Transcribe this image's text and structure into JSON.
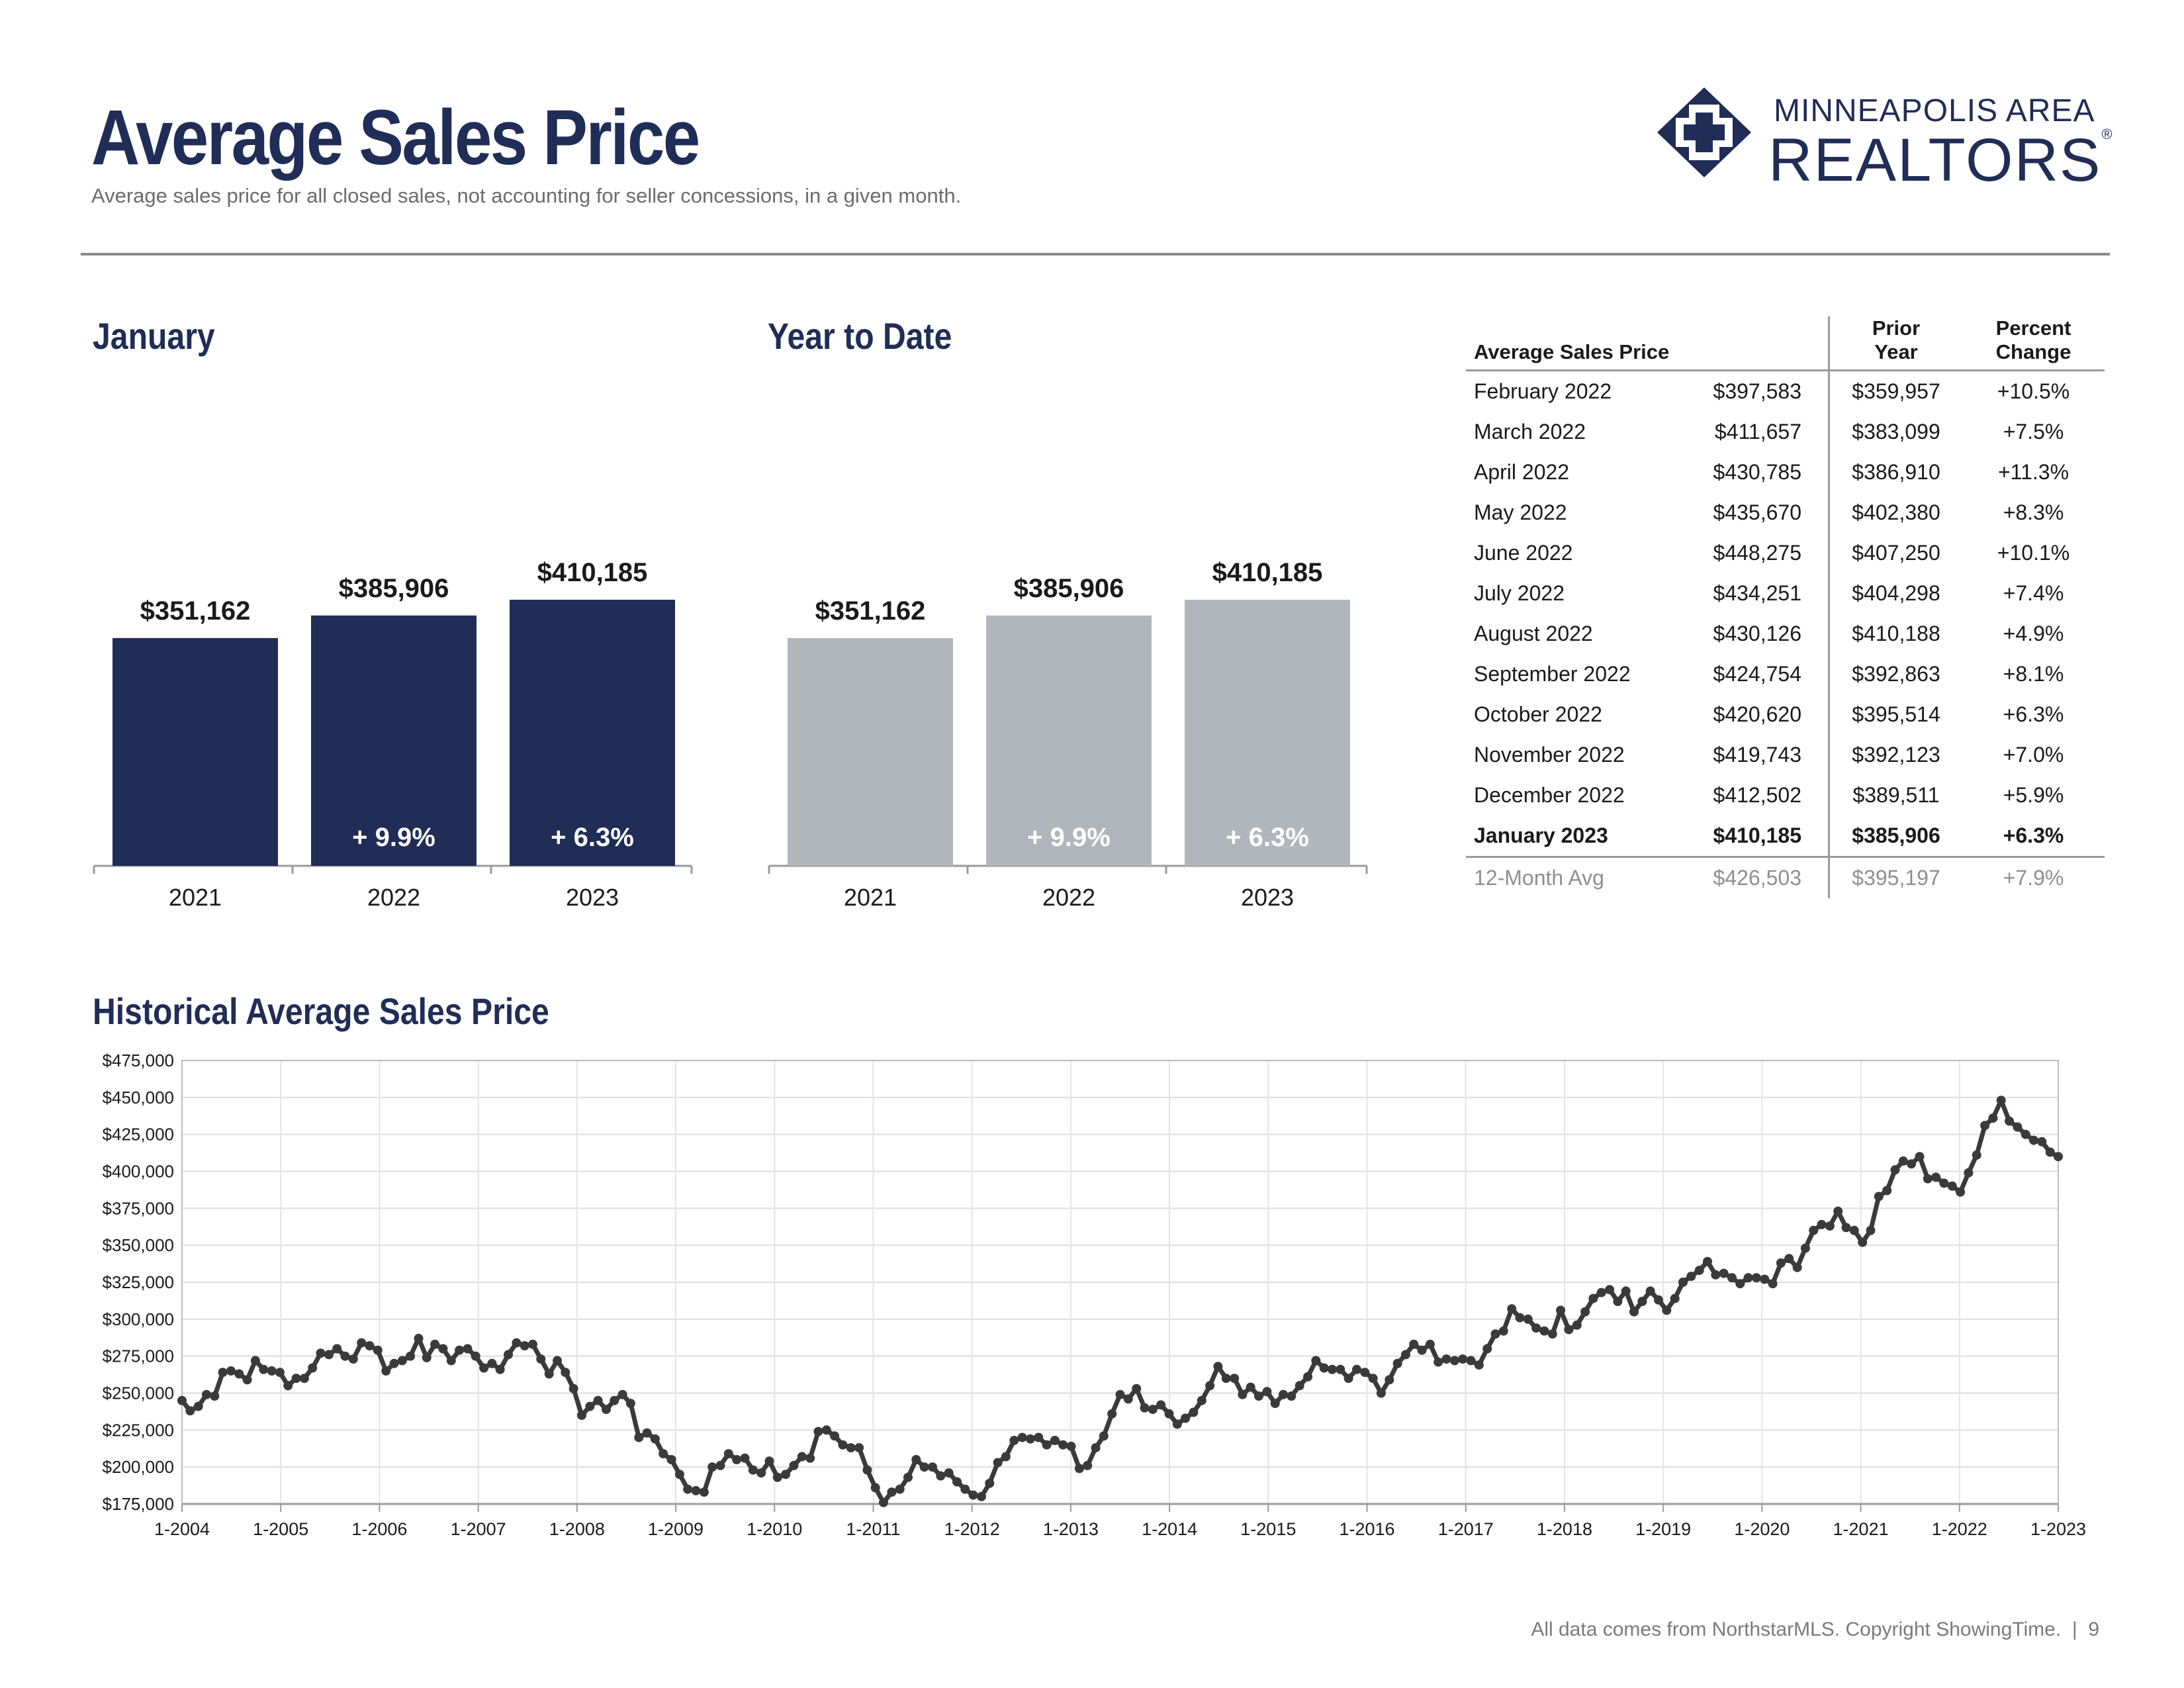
{
  "header": {
    "title": "Average Sales Price",
    "subtitle": "Average sales price for all closed sales, not accounting for seller concessions, in a given month."
  },
  "logo": {
    "line1": "MINNEAPOLIS AREA",
    "line2": "REALTORS",
    "reg": "®",
    "icon": "realtors-diamond-cross-icon"
  },
  "colors": {
    "navy": "#1f2d57",
    "gray_bar": "#b0b6bb",
    "line": "#3a3a3a"
  },
  "sections": {
    "january": "January",
    "ytd": "Year to Date",
    "historical": "Historical Average Sales Price"
  },
  "table": {
    "headers": {
      "label": "Average Sales Price",
      "value": "",
      "prior": [
        "Prior",
        "Year"
      ],
      "change": [
        "Percent",
        "Change"
      ]
    },
    "rows": [
      [
        "February 2022",
        "$397,583",
        "$359,957",
        "+10.5%"
      ],
      [
        "March 2022",
        "$411,657",
        "$383,099",
        "+7.5%"
      ],
      [
        "April 2022",
        "$430,785",
        "$386,910",
        "+11.3%"
      ],
      [
        "May 2022",
        "$435,670",
        "$402,380",
        "+8.3%"
      ],
      [
        "June 2022",
        "$448,275",
        "$407,250",
        "+10.1%"
      ],
      [
        "July 2022",
        "$434,251",
        "$404,298",
        "+7.4%"
      ],
      [
        "August 2022",
        "$430,126",
        "$410,188",
        "+4.9%"
      ],
      [
        "September 2022",
        "$424,754",
        "$392,863",
        "+8.1%"
      ],
      [
        "October 2022",
        "$420,620",
        "$395,514",
        "+6.3%"
      ],
      [
        "November 2022",
        "$419,743",
        "$392,123",
        "+7.0%"
      ],
      [
        "December 2022",
        "$412,502",
        "$389,511",
        "+5.9%"
      ]
    ],
    "current": [
      "January 2023",
      "$410,185",
      "$385,906",
      "+6.3%"
    ],
    "average": [
      "12-Month Avg",
      "$426,503",
      "$395,197",
      "+7.9%"
    ]
  },
  "footer": {
    "source": "All data comes from NorthstarMLS. Copyright ShowingTime.",
    "separator": "|",
    "page": "9"
  },
  "chart_data": [
    {
      "id": "january",
      "type": "bar",
      "categories": [
        "2021",
        "2022",
        "2023"
      ],
      "values": [
        351162,
        385906,
        410185
      ],
      "value_labels": [
        "$351,162",
        "$385,906",
        "$410,185"
      ],
      "change_labels": [
        "",
        "+ 9.9%",
        "+ 6.3%"
      ],
      "color": "#1f2d57",
      "ylim": [
        0,
        410185
      ]
    },
    {
      "id": "ytd",
      "type": "bar",
      "categories": [
        "2021",
        "2022",
        "2023"
      ],
      "values": [
        351162,
        385906,
        410185
      ],
      "value_labels": [
        "$351,162",
        "$385,906",
        "$410,185"
      ],
      "change_labels": [
        "",
        "+ 9.9%",
        "+ 6.3%"
      ],
      "color": "#b0b6bb",
      "ylim": [
        0,
        410185
      ]
    },
    {
      "id": "historical",
      "type": "line",
      "ylim": [
        175000,
        475000
      ],
      "xlim": [
        "1-2004",
        "1-2023"
      ],
      "y_ticks": [
        175000,
        200000,
        225000,
        250000,
        275000,
        300000,
        325000,
        350000,
        375000,
        400000,
        425000,
        450000,
        475000
      ],
      "y_tick_labels": [
        "$175,000",
        "$200,000",
        "$225,000",
        "$250,000",
        "$275,000",
        "$300,000",
        "$325,000",
        "$350,000",
        "$375,000",
        "$400,000",
        "$425,000",
        "$450,000",
        "$475,000"
      ],
      "x_tick_labels": [
        "1-2004",
        "1-2005",
        "1-2006",
        "1-2007",
        "1-2008",
        "1-2009",
        "1-2010",
        "1-2011",
        "1-2012",
        "1-2013",
        "1-2014",
        "1-2015",
        "1-2016",
        "1-2017",
        "1-2018",
        "1-2019",
        "1-2020",
        "1-2021",
        "1-2022",
        "1-2023"
      ],
      "grid": true,
      "values": [
        245000,
        238000,
        241000,
        249000,
        248000,
        264000,
        265000,
        263000,
        259000,
        272000,
        266000,
        265000,
        264000,
        255000,
        260000,
        260000,
        267000,
        277000,
        276000,
        280000,
        275000,
        273000,
        284000,
        282000,
        279000,
        265000,
        270000,
        272000,
        275000,
        287000,
        274000,
        283000,
        280000,
        272000,
        279000,
        280000,
        275000,
        267000,
        270000,
        266000,
        276000,
        284000,
        282000,
        283000,
        273000,
        263000,
        272000,
        264000,
        253000,
        235000,
        241000,
        245000,
        239000,
        245000,
        249000,
        243000,
        220000,
        223000,
        219000,
        209000,
        205000,
        195000,
        185000,
        184000,
        183000,
        200000,
        201000,
        209000,
        205000,
        206000,
        198000,
        196000,
        204000,
        193000,
        195000,
        201000,
        207000,
        206000,
        224000,
        225000,
        221000,
        215000,
        213000,
        213000,
        198000,
        186000,
        176000,
        183000,
        185000,
        193000,
        205000,
        200000,
        200000,
        194000,
        196000,
        190000,
        185000,
        181000,
        180000,
        189000,
        203000,
        207000,
        218000,
        220000,
        219000,
        220000,
        215000,
        218000,
        215000,
        214000,
        199000,
        201000,
        213000,
        221000,
        236000,
        249000,
        246000,
        253000,
        240000,
        239000,
        242000,
        236000,
        229000,
        233000,
        237000,
        245000,
        255000,
        268000,
        260000,
        260000,
        249000,
        254000,
        248000,
        251000,
        243000,
        249000,
        248000,
        255000,
        261000,
        272000,
        267000,
        266000,
        266000,
        260000,
        266000,
        264000,
        260000,
        250000,
        259000,
        270000,
        276000,
        283000,
        279000,
        283000,
        271000,
        273000,
        272000,
        273000,
        272000,
        269000,
        280000,
        290000,
        292000,
        307000,
        301000,
        300000,
        294000,
        292000,
        290000,
        306000,
        293000,
        296000,
        305000,
        314000,
        318000,
        320000,
        312000,
        319000,
        305000,
        312000,
        319000,
        313000,
        306000,
        314000,
        325000,
        329000,
        333000,
        339000,
        330000,
        331000,
        328000,
        324000,
        328000,
        328000,
        327000,
        324000,
        338000,
        341000,
        335000,
        348000,
        360000,
        364000,
        363000,
        373000,
        362000,
        360000,
        352000,
        360000,
        383000,
        387000,
        401000,
        407000,
        405000,
        410000,
        395000,
        396000,
        392000,
        390000,
        386000,
        399000,
        411000,
        431000,
        436000,
        448000,
        434000,
        430000,
        425000,
        421000,
        420000,
        413000,
        410000
      ]
    }
  ]
}
